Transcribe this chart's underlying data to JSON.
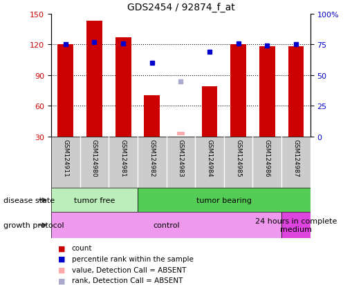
{
  "title": "GDS2454 / 92874_f_at",
  "samples": [
    "GSM124911",
    "GSM124980",
    "GSM124981",
    "GSM124982",
    "GSM124983",
    "GSM124984",
    "GSM124985",
    "GSM124986",
    "GSM124987"
  ],
  "count_values": [
    120,
    143,
    127,
    70,
    null,
    79,
    120,
    118,
    118
  ],
  "percentile_rank": [
    120,
    122,
    121,
    102,
    null,
    113,
    121,
    119,
    120
  ],
  "absent_value": [
    null,
    null,
    null,
    null,
    31,
    null,
    null,
    null,
    null
  ],
  "absent_rank": [
    null,
    null,
    null,
    null,
    84,
    null,
    null,
    null,
    null
  ],
  "bar_color": "#cc0000",
  "rank_color": "#0000cc",
  "absent_val_color": "#ffaaaa",
  "absent_rank_color": "#aaaacc",
  "ylim_left": [
    30,
    150
  ],
  "ylim_right": [
    0,
    100
  ],
  "yticks_left": [
    30,
    60,
    90,
    120,
    150
  ],
  "yticks_right": [
    0,
    25,
    50,
    75,
    100
  ],
  "disease_state_groups": [
    {
      "label": "tumor free",
      "start": 0,
      "end": 3,
      "color": "#bbeebb"
    },
    {
      "label": "tumor bearing",
      "start": 3,
      "end": 9,
      "color": "#55cc55"
    }
  ],
  "growth_protocol_groups": [
    {
      "label": "control",
      "start": 0,
      "end": 8,
      "color": "#ee99ee"
    },
    {
      "label": "24 hours in complete\nmedium",
      "start": 8,
      "end": 9,
      "color": "#dd44dd"
    }
  ],
  "disease_state_label": "disease state",
  "growth_protocol_label": "growth protocol",
  "background_color": "#ffffff",
  "plot_bg": "#ffffff",
  "grid_color": "#000000",
  "left_axis_color": "#cc0000",
  "right_axis_color": "#0000cc",
  "sample_box_color": "#cccccc",
  "legend_items": [
    {
      "color": "#cc0000",
      "label": "count"
    },
    {
      "color": "#0000cc",
      "label": "percentile rank within the sample"
    },
    {
      "color": "#ffaaaa",
      "label": "value, Detection Call = ABSENT"
    },
    {
      "color": "#aaaacc",
      "label": "rank, Detection Call = ABSENT"
    }
  ]
}
